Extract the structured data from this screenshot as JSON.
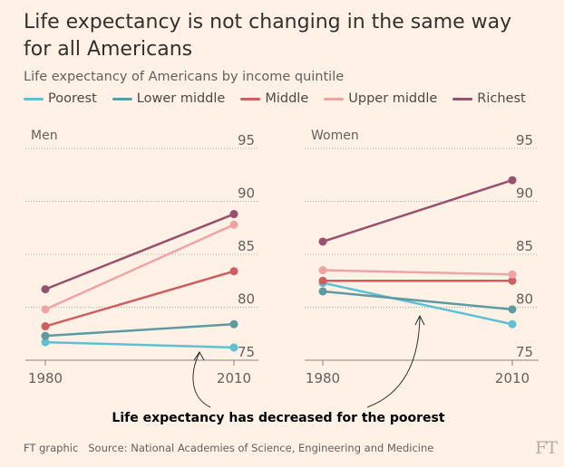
{
  "title": "Life expectancy is not changing in the same way for all Americans",
  "subtitle": "Life expectancy of Americans by income quintile",
  "annotation": "Life expectancy has decreased for the poorest",
  "footer": {
    "credit": "FT graphic",
    "source": "Source: National Academies of Science, Engineering and Medicine"
  },
  "logo": "FT",
  "legend": [
    {
      "name": "Poorest",
      "color": "#5fbfd3"
    },
    {
      "name": "Lower middle",
      "color": "#5e9aa2"
    },
    {
      "name": "Middle",
      "color": "#cf5f5f"
    },
    {
      "name": "Upper middle",
      "color": "#efa3a3"
    },
    {
      "name": "Richest",
      "color": "#99506e"
    }
  ],
  "chart_data": [
    {
      "type": "line",
      "title": "Men",
      "x": [
        "1980",
        "2010"
      ],
      "ylim": [
        75,
        95
      ],
      "yticks": [
        "95",
        "90",
        "85",
        "80",
        "75"
      ],
      "grid": true,
      "series": [
        {
          "name": "Poorest",
          "values": [
            76.7,
            76.2
          ]
        },
        {
          "name": "Lower middle",
          "values": [
            77.3,
            78.4
          ]
        },
        {
          "name": "Middle",
          "values": [
            78.2,
            83.4
          ]
        },
        {
          "name": "Upper middle",
          "values": [
            79.8,
            87.8
          ]
        },
        {
          "name": "Richest",
          "values": [
            81.7,
            88.8
          ]
        }
      ]
    },
    {
      "type": "line",
      "title": "Women",
      "x": [
        "1980",
        "2010"
      ],
      "ylim": [
        75,
        95
      ],
      "yticks": [
        "95",
        "90",
        "85",
        "80",
        "75"
      ],
      "grid": true,
      "series": [
        {
          "name": "Poorest",
          "values": [
            82.3,
            78.4
          ]
        },
        {
          "name": "Lower middle",
          "values": [
            81.5,
            79.8
          ]
        },
        {
          "name": "Middle",
          "values": [
            82.5,
            82.5
          ]
        },
        {
          "name": "Upper middle",
          "values": [
            83.5,
            83.1
          ]
        },
        {
          "name": "Richest",
          "values": [
            86.2,
            92.0
          ]
        }
      ]
    }
  ]
}
